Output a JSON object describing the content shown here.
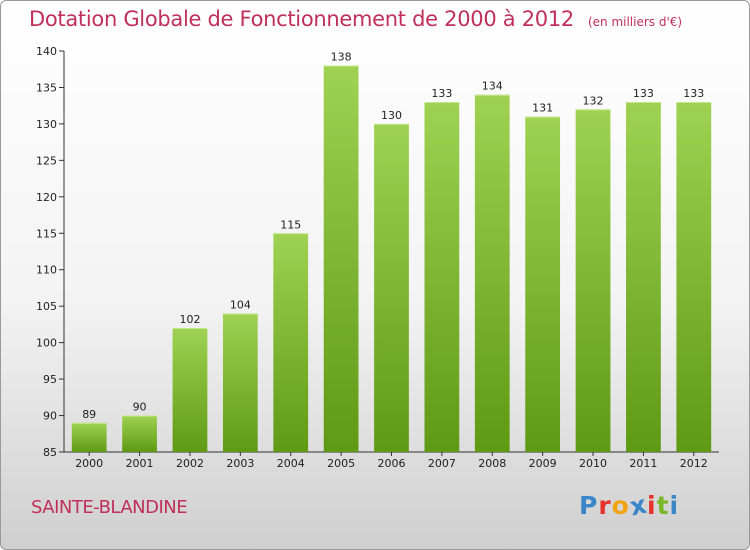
{
  "chart_data": {
    "type": "bar",
    "title": "Dotation Globale de Fonctionnement de 2000 à 2012",
    "unit_label": "(en milliers d'€)",
    "categories": [
      "2000",
      "2001",
      "2002",
      "2003",
      "2004",
      "2005",
      "2006",
      "2007",
      "2008",
      "2009",
      "2010",
      "2011",
      "2012"
    ],
    "values": [
      89,
      90,
      102,
      104,
      115,
      138,
      130,
      133,
      134,
      131,
      132,
      133,
      133
    ],
    "xlabel": "",
    "ylabel": "",
    "ylim": [
      85,
      140
    ],
    "yticks": [
      85,
      90,
      95,
      100,
      105,
      110,
      115,
      120,
      125,
      130,
      135,
      140
    ],
    "grid": false,
    "bar_color": "#7dbb2b"
  },
  "footer": {
    "commune": "SAINTE-BLANDINE",
    "logo_letters": [
      "P",
      "r",
      "o",
      "x",
      "i",
      "t",
      "i"
    ],
    "logo_colors": [
      "#3a86c8",
      "#e8312a",
      "#f2a311",
      "#3a86c8",
      "#e8312a",
      "#7ab82a",
      "#3a86c8"
    ]
  }
}
